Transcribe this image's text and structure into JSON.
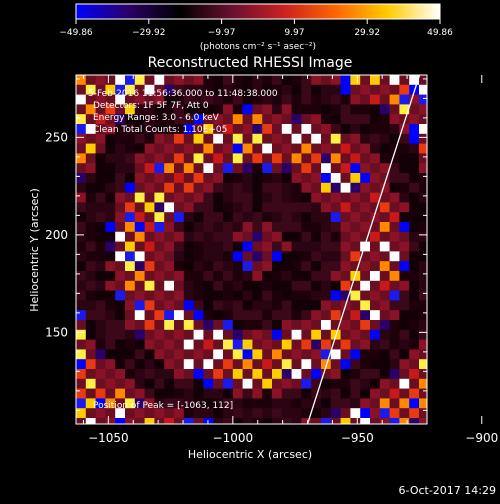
{
  "chart_data": {
    "type": "heatmap",
    "title": "Reconstructed RHESSI Image",
    "xlabel": "Heliocentric X (arcsec)",
    "ylabel": "Heliocentric Y (arcsec)",
    "xlim": [
      -1063,
      -922
    ],
    "ylim": [
      103,
      282
    ],
    "x_ticks": [
      -1050,
      -1000,
      -950,
      -900
    ],
    "y_ticks": [
      150,
      200,
      250
    ],
    "x_tick_labels": [
      "−1050",
      "−1000",
      "−950",
      "−900"
    ],
    "y_tick_labels": [
      "150",
      "200",
      "250"
    ],
    "colorbar": {
      "min": -49.86,
      "max": 49.86,
      "tick_labels": [
        "−49.86",
        "−29.92",
        "−9.97",
        "9.97",
        "29.92",
        "49.86"
      ],
      "unit_label": "(photons cm⁻² s⁻¹ asec⁻²)",
      "colormap": [
        "#0000ff",
        "#2a0068",
        "#000000",
        "#6a1030",
        "#cc2020",
        "#ff6600",
        "#ffcc00",
        "#ffffff"
      ]
    },
    "annotations": [
      "5-Feb-2016 11:56:36.000 to 11:48:38.000",
      "Detectors: 1F 5F 7F, Att 0",
      "Energy Range: 3.0 - 6.0 keV",
      "Clean    Total Counts: 1.10E+05"
    ],
    "peak_label": "Position of Peak = [-1063, 112]",
    "limb_line": {
      "x": [
        -970,
        -925
      ],
      "y": [
        103,
        282
      ]
    }
  },
  "footer": {
    "timestamp": "6-Oct-2017 14:29"
  }
}
